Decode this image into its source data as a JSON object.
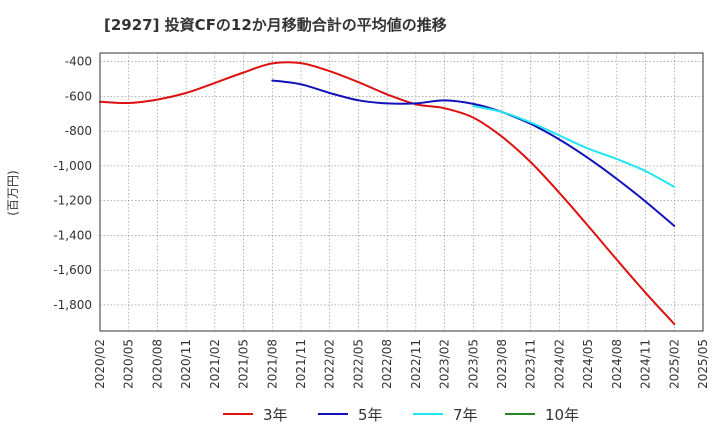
{
  "title": "[2927]  投資CFの12か月移動合計の平均値の推移",
  "chart_data": {
    "type": "line",
    "title": "[2927]  投資CFの12か月移動合計の平均値の推移",
    "ylabel": "(百万円)",
    "xlabel": "",
    "ylim": [
      -1950,
      -350
    ],
    "yticks": [
      -400,
      -600,
      -800,
      -1000,
      -1200,
      -1400,
      -1600,
      -1800
    ],
    "ytick_labels": [
      "-400",
      "-600",
      "-800",
      "-1,000",
      "-1,200",
      "-1,400",
      "-1,600",
      "-1,800"
    ],
    "x_ticks": [
      "2020/02",
      "2020/05",
      "2020/08",
      "2020/11",
      "2021/02",
      "2021/05",
      "2021/08",
      "2021/11",
      "2022/02",
      "2022/05",
      "2022/08",
      "2022/11",
      "2023/02",
      "2023/05",
      "2023/08",
      "2023/11",
      "2024/02",
      "2024/05",
      "2024/08",
      "2024/11",
      "2025/02",
      "2025/05"
    ],
    "grid": true,
    "legend_position": "bottom",
    "series": [
      {
        "name": "3年",
        "color": "#dd1111",
        "points": [
          [
            "2020/02",
            -630
          ],
          [
            "2020/05",
            -638
          ],
          [
            "2020/08",
            -618
          ],
          [
            "2020/11",
            -580
          ],
          [
            "2021/02",
            -522
          ],
          [
            "2021/05",
            -462
          ],
          [
            "2021/08",
            -410
          ],
          [
            "2021/11",
            -408
          ],
          [
            "2022/02",
            -455
          ],
          [
            "2022/05",
            -518
          ],
          [
            "2022/08",
            -588
          ],
          [
            "2022/11",
            -645
          ],
          [
            "2023/02",
            -668
          ],
          [
            "2023/05",
            -722
          ],
          [
            "2023/08",
            -832
          ],
          [
            "2023/11",
            -978
          ],
          [
            "2024/02",
            -1155
          ],
          [
            "2024/05",
            -1345
          ],
          [
            "2024/08",
            -1540
          ],
          [
            "2024/11",
            -1730
          ],
          [
            "2025/02",
            -1910
          ]
        ]
      },
      {
        "name": "5年",
        "color": "#1111bb",
        "points": [
          [
            "2021/08",
            -508
          ],
          [
            "2021/11",
            -530
          ],
          [
            "2022/02",
            -580
          ],
          [
            "2022/05",
            -622
          ],
          [
            "2022/08",
            -640
          ],
          [
            "2022/11",
            -640
          ],
          [
            "2023/02",
            -623
          ],
          [
            "2023/05",
            -643
          ],
          [
            "2023/08",
            -690
          ],
          [
            "2023/11",
            -758
          ],
          [
            "2024/02",
            -848
          ],
          [
            "2024/05",
            -955
          ],
          [
            "2024/08",
            -1075
          ],
          [
            "2024/11",
            -1205
          ],
          [
            "2025/02",
            -1345
          ]
        ]
      },
      {
        "name": "7年",
        "color": "#22e5ee",
        "points": [
          [
            "2023/05",
            -655
          ],
          [
            "2023/08",
            -690
          ],
          [
            "2023/11",
            -750
          ],
          [
            "2024/02",
            -825
          ],
          [
            "2024/05",
            -900
          ],
          [
            "2024/08",
            -960
          ],
          [
            "2024/11",
            -1030
          ],
          [
            "2025/02",
            -1120
          ]
        ]
      },
      {
        "name": "10年",
        "color": "#228822",
        "points": []
      }
    ]
  }
}
